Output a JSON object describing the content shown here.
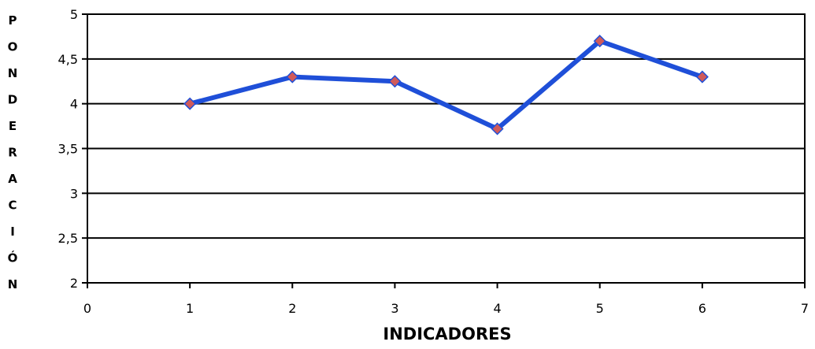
{
  "chart_data": {
    "type": "line",
    "title": "",
    "xlabel": "INDICADORES",
    "ylabel": "PONDERACIÓN",
    "xlim": [
      0,
      7
    ],
    "ylim": [
      2,
      5
    ],
    "x_ticks": [
      "0",
      "1",
      "2",
      "3",
      "4",
      "5",
      "6",
      "7"
    ],
    "y_ticks": [
      "2",
      "2,5",
      "3",
      "3,5",
      "4",
      "4,5",
      "5"
    ],
    "grid": "horizontal",
    "legend": "none",
    "series": [
      {
        "x": [
          1,
          2,
          3,
          4,
          5,
          6
        ],
        "y": [
          4.0,
          4.3,
          4.25,
          3.72,
          4.7,
          4.3
        ],
        "line_color": "#1f4fd8",
        "marker": "diamond",
        "marker_color": "#d05a5a",
        "marker_edge_color": "#1f4fd8"
      }
    ]
  }
}
